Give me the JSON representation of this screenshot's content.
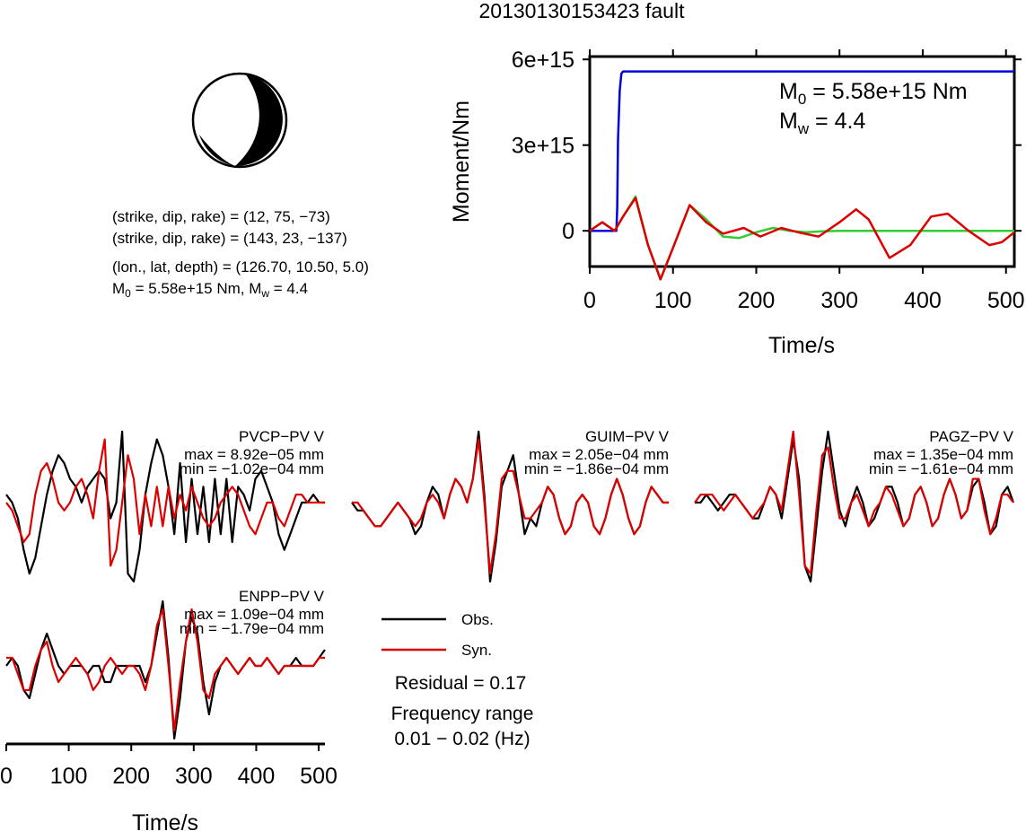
{
  "title": "20130130153423 fault",
  "mechanism": {
    "line1": "(strike, dip, rake) = (12, 75, −73)",
    "line2": "(strike, dip, rake) = (143, 23, −137)",
    "location": "(lon., lat, depth) = (126.70, 10.50, 5.0)",
    "m0_label": "M",
    "m0_sub": "0",
    "m0_value": " = 5.58e+15 Nm, M",
    "mw_sub": "w",
    "mw_value": " = 4.4"
  },
  "chart_data": [
    {
      "type": "line",
      "ylabel": "Moment/Nm",
      "xlabel": "Time/s",
      "xlim": [
        0,
        510
      ],
      "ylim": [
        -1250000000000000.0,
        6100000000000000.0
      ],
      "xticks": [
        "0",
        "100",
        "200",
        "300",
        "400",
        "500"
      ],
      "yticks": [
        "0",
        "3e+15",
        "6e+15"
      ],
      "annotation_m0": "M",
      "annotation_m0_sub": "0",
      "annotation_m0_value": " = 5.58e+15 Nm",
      "annotation_mw": "M",
      "annotation_mw_sub": "w",
      "annotation_mw_value": " = 4.4",
      "series": [
        {
          "color": "#0000dd",
          "x": [
            0,
            32,
            33,
            34,
            36,
            38,
            40,
            510
          ],
          "y": [
            0,
            0,
            800000000000000.0,
            3200000000000000.0,
            4900000000000000.0,
            5500000000000000.0,
            5580000000000000.0,
            5580000000000000.0
          ]
        },
        {
          "color": "#33cc33",
          "x": [
            0,
            15,
            30,
            40,
            55,
            70,
            85,
            100,
            120,
            140,
            160,
            180,
            200,
            220,
            240,
            260,
            280,
            300,
            510
          ],
          "y": [
            0,
            300000000000000.0,
            0,
            500000000000000.0,
            1200000000000000.0,
            -500000000000000.0,
            -1700000000000000.0,
            -600000000000000.0,
            900000000000000.0,
            400000000000000.0,
            -200000000000000.0,
            -250000000000000.0,
            -50000000000000.0,
            100000000000000.0,
            0.0,
            -50000000000000.0,
            -20000000000000.0,
            0,
            0
          ]
        },
        {
          "color": "#dd0000",
          "x": [
            0,
            15,
            30,
            40,
            55,
            70,
            85,
            100,
            120,
            140,
            160,
            185,
            205,
            230,
            250,
            275,
            300,
            320,
            335,
            360,
            385,
            410,
            430,
            455,
            480,
            495,
            510
          ],
          "y": [
            0,
            300000000000000.0,
            0,
            500000000000000.0,
            1150000000000000.0,
            -500000000000000.0,
            -1700000000000000.0,
            -600000000000000.0,
            900000000000000.0,
            300000000000000.0,
            -100000000000000.0,
            100000000000000.0,
            -200000000000000.0,
            100000000000000.0,
            -50000000000000.0,
            -200000000000000.0,
            300000000000000.0,
            750000000000000.0,
            400000000000000.0,
            -950000000000000.0,
            -500000000000000.0,
            500000000000000.0,
            600000000000000.0,
            0.0,
            -500000000000000.0,
            -400000000000000.0,
            -50000000000000.0
          ]
        }
      ]
    },
    {
      "type": "line",
      "xlabel": "Time/s",
      "xlim": [
        0,
        510
      ],
      "xticks": [
        "0",
        "100",
        "200",
        "300",
        "400",
        "500"
      ],
      "legend": {
        "obs": "Obs.",
        "syn": "Syn."
      },
      "residual": "Residual = 0.17",
      "freq_label": "Frequency range",
      "freq_value": "0.01 − 0.02 (Hz)",
      "stations": [
        {
          "name": "PVCP−PV V",
          "max": "max = 8.92e−05 mm",
          "min": "min = −1.02e−04 mm",
          "obs": [
            0.1,
            0.0,
            -0.2,
            -0.6,
            -0.9,
            -0.7,
            -0.3,
            0.1,
            0.4,
            0.6,
            0.5,
            0.3,
            0.2,
            0.0,
            0.2,
            0.3,
            0.4,
            0.3,
            -0.2,
            0.0,
            0.9,
            -0.9,
            -1.0,
            -0.6,
            0.1,
            0.5,
            0.8,
            0.6,
            0.2,
            -0.4,
            0.5,
            -0.5,
            0.3,
            -0.4,
            0.2,
            -0.5,
            0.3,
            -0.4,
            0.3,
            -0.5,
            0.2,
            0.1,
            -0.1,
            0.3,
            0.4,
            0.2,
            0.0,
            -0.4,
            -0.6,
            -0.4,
            -0.2,
            0.0,
            0.0,
            0.1,
            0.0,
            0.0
          ],
          "syn": [
            0.0,
            -0.1,
            -0.3,
            -0.5,
            -0.4,
            0.1,
            0.4,
            0.5,
            0.3,
            0.0,
            -0.1,
            0.0,
            0.2,
            0.3,
            0.1,
            -0.2,
            0.4,
            0.8,
            -0.8,
            -0.6,
            0.0,
            0.6,
            0.3,
            -0.4,
            0.1,
            -0.3,
            0.2,
            -0.3,
            0.2,
            -0.2,
            0.1,
            -0.1,
            0.2,
            0.0,
            -0.2,
            -0.3,
            -0.2,
            0.0,
            0.1,
            0.2,
            0.1,
            -0.1,
            -0.3,
            -0.4,
            -0.2,
            0.0,
            0.0,
            -0.2,
            -0.3,
            -0.1,
            0.1,
            0.1,
            0.0,
            0.0,
            0.0,
            0.0
          ]
        },
        {
          "name": "GUIM−PV V",
          "max": "max = 2.05e−04 mm",
          "min": "min = −1.86e−04 mm",
          "obs": [
            0.0,
            -0.1,
            -0.1,
            -0.2,
            -0.3,
            -0.3,
            -0.2,
            -0.1,
            0.0,
            -0.1,
            -0.2,
            -0.4,
            -0.3,
            0.0,
            0.2,
            0.1,
            -0.2,
            0.1,
            0.3,
            0.2,
            0.0,
            0.3,
            0.9,
            0.1,
            -1.0,
            -0.5,
            0.2,
            0.4,
            0.6,
            0.1,
            -0.4,
            -0.2,
            -0.3,
            0.0,
            0.2,
            0.1,
            -0.2,
            -0.4,
            -0.3,
            0.0,
            0.1,
            0.0,
            -0.3,
            -0.4,
            -0.2,
            0.1,
            0.3,
            0.1,
            -0.2,
            -0.4,
            -0.3,
            0.0,
            0.2,
            0.1,
            0.0,
            0.0
          ],
          "syn": [
            0.0,
            0.0,
            -0.1,
            -0.2,
            -0.3,
            -0.3,
            -0.2,
            -0.1,
            0.0,
            -0.1,
            -0.2,
            -0.3,
            -0.2,
            0.0,
            0.1,
            0.0,
            -0.2,
            0.1,
            0.3,
            0.2,
            0.0,
            0.3,
            0.8,
            0.0,
            -0.9,
            -0.4,
            0.3,
            0.4,
            0.4,
            0.1,
            -0.2,
            -0.2,
            -0.1,
            0.0,
            0.2,
            0.1,
            -0.2,
            -0.4,
            -0.3,
            0.0,
            0.1,
            0.0,
            -0.3,
            -0.4,
            -0.2,
            0.1,
            0.3,
            0.1,
            -0.2,
            -0.4,
            -0.3,
            0.0,
            0.2,
            0.1,
            0.0,
            0.0
          ]
        },
        {
          "name": "PAGZ−PV V",
          "max": "max = 1.35e−04 mm",
          "min": "min = −1.61e−04 mm",
          "obs": [
            0.0,
            0.0,
            0.1,
            0.0,
            -0.1,
            0.0,
            0.1,
            0.1,
            0.0,
            -0.1,
            -0.2,
            -0.2,
            0.0,
            0.2,
            0.1,
            -0.2,
            0.3,
            0.8,
            0.3,
            -0.8,
            -1.0,
            -0.3,
            0.4,
            0.9,
            0.4,
            -0.1,
            -0.3,
            0.0,
            0.2,
            0.0,
            -0.3,
            -0.2,
            0.0,
            0.2,
            0.2,
            0.0,
            -0.3,
            -0.2,
            0.1,
            0.2,
            0.0,
            -0.3,
            -0.2,
            0.1,
            0.3,
            0.1,
            -0.2,
            -0.1,
            0.2,
            0.3,
            0.0,
            -0.4,
            -0.3,
            0.1,
            0.2,
            0.0
          ],
          "syn": [
            0.0,
            0.1,
            0.1,
            0.1,
            0.0,
            -0.1,
            0.0,
            0.1,
            0.0,
            -0.1,
            -0.2,
            -0.1,
            0.0,
            0.2,
            0.1,
            -0.1,
            0.4,
            0.9,
            0.1,
            -0.8,
            -0.9,
            -0.1,
            0.6,
            0.7,
            0.2,
            -0.2,
            -0.2,
            0.0,
            0.1,
            -0.1,
            -0.3,
            -0.1,
            0.0,
            0.2,
            0.1,
            -0.1,
            -0.3,
            -0.2,
            0.1,
            0.2,
            0.0,
            -0.3,
            -0.2,
            0.1,
            0.3,
            0.1,
            -0.2,
            -0.1,
            0.3,
            0.3,
            -0.1,
            -0.4,
            -0.2,
            0.1,
            0.1,
            0.0
          ]
        },
        {
          "name": "ENPP−PV V",
          "max": "max = 1.09e−04 mm",
          "min": "min = −1.79e−04 mm",
          "obs": [
            0.0,
            0.1,
            0.0,
            -0.3,
            -0.4,
            -0.1,
            0.2,
            0.4,
            0.2,
            0.0,
            -0.1,
            0.0,
            0.0,
            0.0,
            -0.1,
            0.0,
            0.0,
            -0.2,
            -0.2,
            0.0,
            0.0,
            0.0,
            0.0,
            0.0,
            -0.2,
            0.0,
            0.4,
            0.8,
            0.1,
            -0.9,
            -0.4,
            0.3,
            0.6,
            0.4,
            -0.2,
            -0.6,
            -0.2,
            0.0,
            0.1,
            0.0,
            -0.1,
            0.0,
            0.1,
            0.0,
            0.0,
            0.1,
            0.0,
            -0.1,
            0.0,
            0.0,
            0.1,
            0.0,
            0.0,
            0.0,
            0.1,
            0.2
          ],
          "syn": [
            0.1,
            0.1,
            -0.1,
            -0.3,
            -0.3,
            0.0,
            0.2,
            0.3,
            0.0,
            -0.2,
            -0.1,
            0.0,
            0.1,
            0.0,
            -0.1,
            -0.3,
            -0.2,
            0.0,
            0.1,
            0.0,
            -0.1,
            0.0,
            0.0,
            -0.1,
            -0.3,
            0.0,
            0.5,
            0.7,
            0.0,
            -0.8,
            -0.2,
            0.3,
            0.7,
            0.3,
            -0.3,
            -0.4,
            -0.1,
            0.0,
            0.1,
            0.0,
            -0.1,
            0.0,
            0.1,
            0.0,
            0.0,
            0.1,
            0.0,
            -0.1,
            0.0,
            0.0,
            0.0,
            0.0,
            0.0,
            0.0,
            0.1,
            0.1
          ]
        }
      ]
    }
  ]
}
